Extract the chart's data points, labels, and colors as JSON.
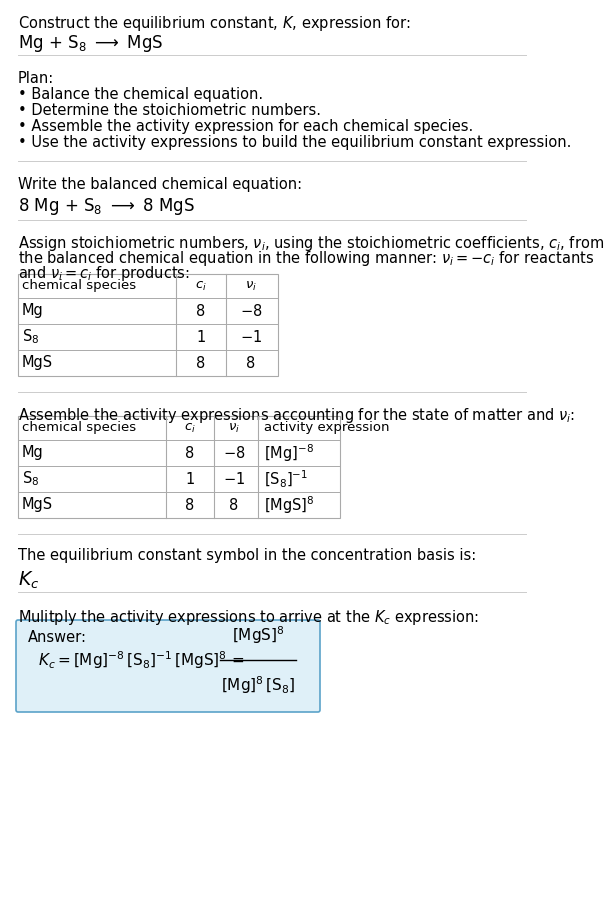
{
  "title_line1": "Construct the equilibrium constant, $K$, expression for:",
  "title_line2": "Mg + S$_8$ $\\longrightarrow$ MgS",
  "plan_header": "Plan:",
  "plan_bullets": [
    "\\u2022 Balance the chemical equation.",
    "\\u2022 Determine the stoichiometric numbers.",
    "\\u2022 Assemble the activity expression for each chemical species.",
    "\\u2022 Use the activity expressions to build the equilibrium constant expression."
  ],
  "balanced_header": "Write the balanced chemical equation:",
  "balanced_eq": "8 Mg + S$_8$ $\\longrightarrow$ 8 MgS",
  "stoich_intro1": "Assign stoichiometric numbers, $\\nu_i$, using the stoichiometric coefficients, $c_i$, from",
  "stoich_intro2": "the balanced chemical equation in the following manner: $\\nu_i = -c_i$ for reactants",
  "stoich_intro3": "and $\\nu_i = c_i$ for products:",
  "table1_col_headers": [
    "chemical species",
    "$c_i$",
    "$\\nu_i$"
  ],
  "table1_rows": [
    [
      "Mg",
      "8",
      "$-8$"
    ],
    [
      "S$_8$",
      "1",
      "$-1$"
    ],
    [
      "MgS",
      "8",
      "8"
    ]
  ],
  "activity_intro": "Assemble the activity expressions accounting for the state of matter and $\\nu_i$:",
  "table2_col_headers": [
    "chemical species",
    "$c_i$",
    "$\\nu_i$",
    "activity expression"
  ],
  "table2_rows": [
    [
      "Mg",
      "8",
      "$-8$",
      "$[\\mathrm{Mg}]^{-8}$"
    ],
    [
      "S$_8$",
      "1",
      "$-1$",
      "$[\\mathrm{S_8}]^{-1}$"
    ],
    [
      "MgS",
      "8",
      "8",
      "$[\\mathrm{MgS}]^{8}$"
    ]
  ],
  "kc_intro": "The equilibrium constant symbol in the concentration basis is:",
  "kc_symbol": "$K_c$",
  "multiply_intro": "Mulitply the activity expressions to arrive at the $K_c$ expression:",
  "answer_label": "Answer:",
  "bg_color": "#ffffff",
  "answer_bg": "#dff0f8",
  "answer_border": "#5ba3c9",
  "text_color": "#000000",
  "table_line_color": "#aaaaaa",
  "sep_line_color": "#cccccc",
  "font_size": 10.5,
  "small_font": 9.5
}
